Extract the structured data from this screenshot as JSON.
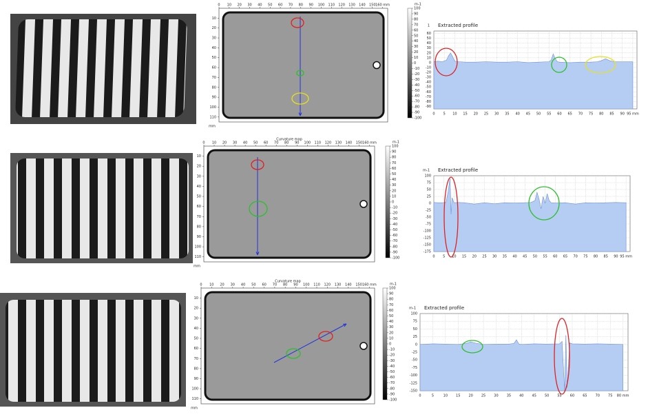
{
  "chart_data": [
    {
      "type": "map",
      "xlim": [
        0,
        165
      ],
      "ylim": [
        0,
        115
      ],
      "xticks": [
        0,
        10,
        20,
        30,
        40,
        50,
        60,
        70,
        80,
        90,
        100,
        110,
        120,
        130,
        140,
        150,
        {
          "value": 160,
          "label": "160 mm"
        }
      ],
      "yticks": [
        10,
        20,
        30,
        40,
        50,
        60,
        70,
        80,
        90,
        100,
        110
      ],
      "ylabel": "mm",
      "colorbar_label": "m-1",
      "clim": [
        -100,
        100
      ],
      "cticks": [
        100,
        90,
        80,
        70,
        60,
        50,
        40,
        30,
        20,
        10,
        0,
        -10,
        -20,
        -30,
        -40,
        -50,
        -60,
        -70,
        -80,
        -90,
        -100
      ]
    },
    {
      "type": "area",
      "title": "Extracted profile",
      "ylabel": "1",
      "color": "#b6cdf3",
      "line_color": "#6d8fd8",
      "grid": true,
      "xlim": [
        0,
        97
      ],
      "ylim": [
        -95,
        65
      ],
      "xticks": [
        0,
        5,
        10,
        15,
        20,
        25,
        30,
        35,
        40,
        45,
        50,
        55,
        60,
        65,
        70,
        75,
        80,
        85,
        90,
        {
          "value": 95,
          "label": "95 mm"
        }
      ],
      "yticks": [
        60,
        50,
        40,
        30,
        20,
        10,
        0,
        -10,
        -20,
        -30,
        -40,
        -50,
        -60,
        -70,
        -80,
        -90
      ],
      "x": [
        0,
        2,
        4,
        6,
        7,
        8,
        9,
        10,
        12,
        15,
        20,
        25,
        30,
        35,
        40,
        45,
        50,
        55,
        56,
        57,
        58,
        59,
        60,
        65,
        70,
        75,
        78,
        80,
        82,
        84,
        86,
        90,
        95
      ],
      "values": [
        2,
        3,
        2,
        5,
        14,
        20,
        12,
        3,
        2,
        1,
        1,
        2,
        1,
        1,
        2,
        0,
        1,
        2,
        5,
        18,
        8,
        2,
        1,
        0,
        1,
        1,
        2,
        4,
        8,
        4,
        2,
        2,
        2
      ]
    },
    {
      "type": "map",
      "title": "Curvature map",
      "xlim": [
        0,
        165
      ],
      "ylim": [
        0,
        115
      ],
      "xticks": [
        0,
        10,
        20,
        30,
        40,
        50,
        60,
        70,
        80,
        90,
        100,
        110,
        120,
        130,
        140,
        150,
        {
          "value": 160,
          "label": "160 mm"
        }
      ],
      "yticks": [
        10,
        20,
        30,
        40,
        50,
        60,
        70,
        80,
        90,
        100,
        110
      ],
      "ylabel": "mm",
      "colorbar_label": "m-1",
      "clim": [
        -100,
        100
      ],
      "cticks": [
        100,
        90,
        80,
        70,
        60,
        50,
        40,
        30,
        20,
        10,
        0,
        -10,
        -20,
        -30,
        -40,
        -50,
        -60,
        -70,
        -80,
        -90,
        -100
      ]
    },
    {
      "type": "area",
      "title": "Extracted profile",
      "ylabel": "m-1",
      "color": "#b6cdf3",
      "line_color": "#6d8fd8",
      "grid": true,
      "xlim": [
        0,
        97
      ],
      "ylim": [
        -175,
        100
      ],
      "xticks": [
        0,
        5,
        10,
        15,
        20,
        25,
        30,
        35,
        40,
        45,
        50,
        55,
        60,
        65,
        70,
        75,
        80,
        85,
        90,
        {
          "value": 95,
          "label": "95 mm"
        }
      ],
      "yticks": [
        100,
        75,
        50,
        25,
        0,
        -25,
        -50,
        -75,
        -100,
        -125,
        -150,
        -175
      ],
      "x": [
        0,
        2,
        4,
        6,
        7,
        8,
        8.5,
        9,
        10,
        12,
        15,
        20,
        25,
        30,
        35,
        40,
        45,
        48,
        50,
        51,
        52,
        53,
        54,
        55,
        56,
        57,
        58,
        60,
        65,
        70,
        75,
        80,
        85,
        90,
        95
      ],
      "values": [
        3,
        2,
        2,
        3,
        40,
        90,
        -40,
        20,
        2,
        3,
        2,
        -3,
        2,
        -2,
        2,
        1,
        2,
        3,
        10,
        40,
        15,
        -20,
        25,
        0,
        35,
        10,
        2,
        1,
        2,
        -3,
        2,
        1,
        2,
        3,
        2
      ]
    },
    {
      "type": "map",
      "title": "Curvature map",
      "xlim": [
        0,
        165
      ],
      "ylim": [
        0,
        115
      ],
      "xticks": [
        0,
        10,
        20,
        30,
        40,
        50,
        60,
        70,
        80,
        90,
        100,
        110,
        120,
        130,
        140,
        150,
        {
          "value": 160,
          "label": "160 mm"
        }
      ],
      "yticks": [
        10,
        20,
        30,
        40,
        50,
        60,
        70,
        80,
        90,
        100,
        110
      ],
      "ylabel": "mm",
      "colorbar_label": "m-1",
      "clim": [
        -100,
        100
      ],
      "cticks": [
        100,
        90,
        80,
        70,
        60,
        50,
        40,
        30,
        20,
        10,
        0,
        -10,
        -20,
        -30,
        -40,
        -50,
        -60,
        -70,
        -80,
        -90,
        -100
      ]
    },
    {
      "type": "area",
      "title": "Extracted profile",
      "ylabel": "m-1",
      "color": "#b6cdf3",
      "line_color": "#6d8fd8",
      "grid": true,
      "xlim": [
        0,
        82
      ],
      "ylim": [
        -150,
        100
      ],
      "xticks": [
        0,
        5,
        10,
        15,
        20,
        25,
        30,
        35,
        40,
        45,
        50,
        55,
        60,
        65,
        70,
        75,
        {
          "value": 80,
          "label": "80 mm"
        }
      ],
      "yticks": [
        100,
        75,
        50,
        25,
        0,
        -25,
        -50,
        -75,
        -100,
        -125,
        -150
      ],
      "x": [
        0,
        5,
        10,
        15,
        18,
        20,
        22,
        25,
        30,
        35,
        37,
        38,
        39,
        40,
        45,
        50,
        55,
        56,
        57,
        57.5,
        58,
        59,
        60,
        65,
        70,
        75,
        80
      ],
      "values": [
        0,
        2,
        1,
        0,
        3,
        8,
        4,
        0,
        1,
        1,
        3,
        15,
        1,
        0,
        2,
        1,
        2,
        10,
        -150,
        30,
        -140,
        5,
        2,
        1,
        2,
        1,
        0
      ]
    }
  ]
}
